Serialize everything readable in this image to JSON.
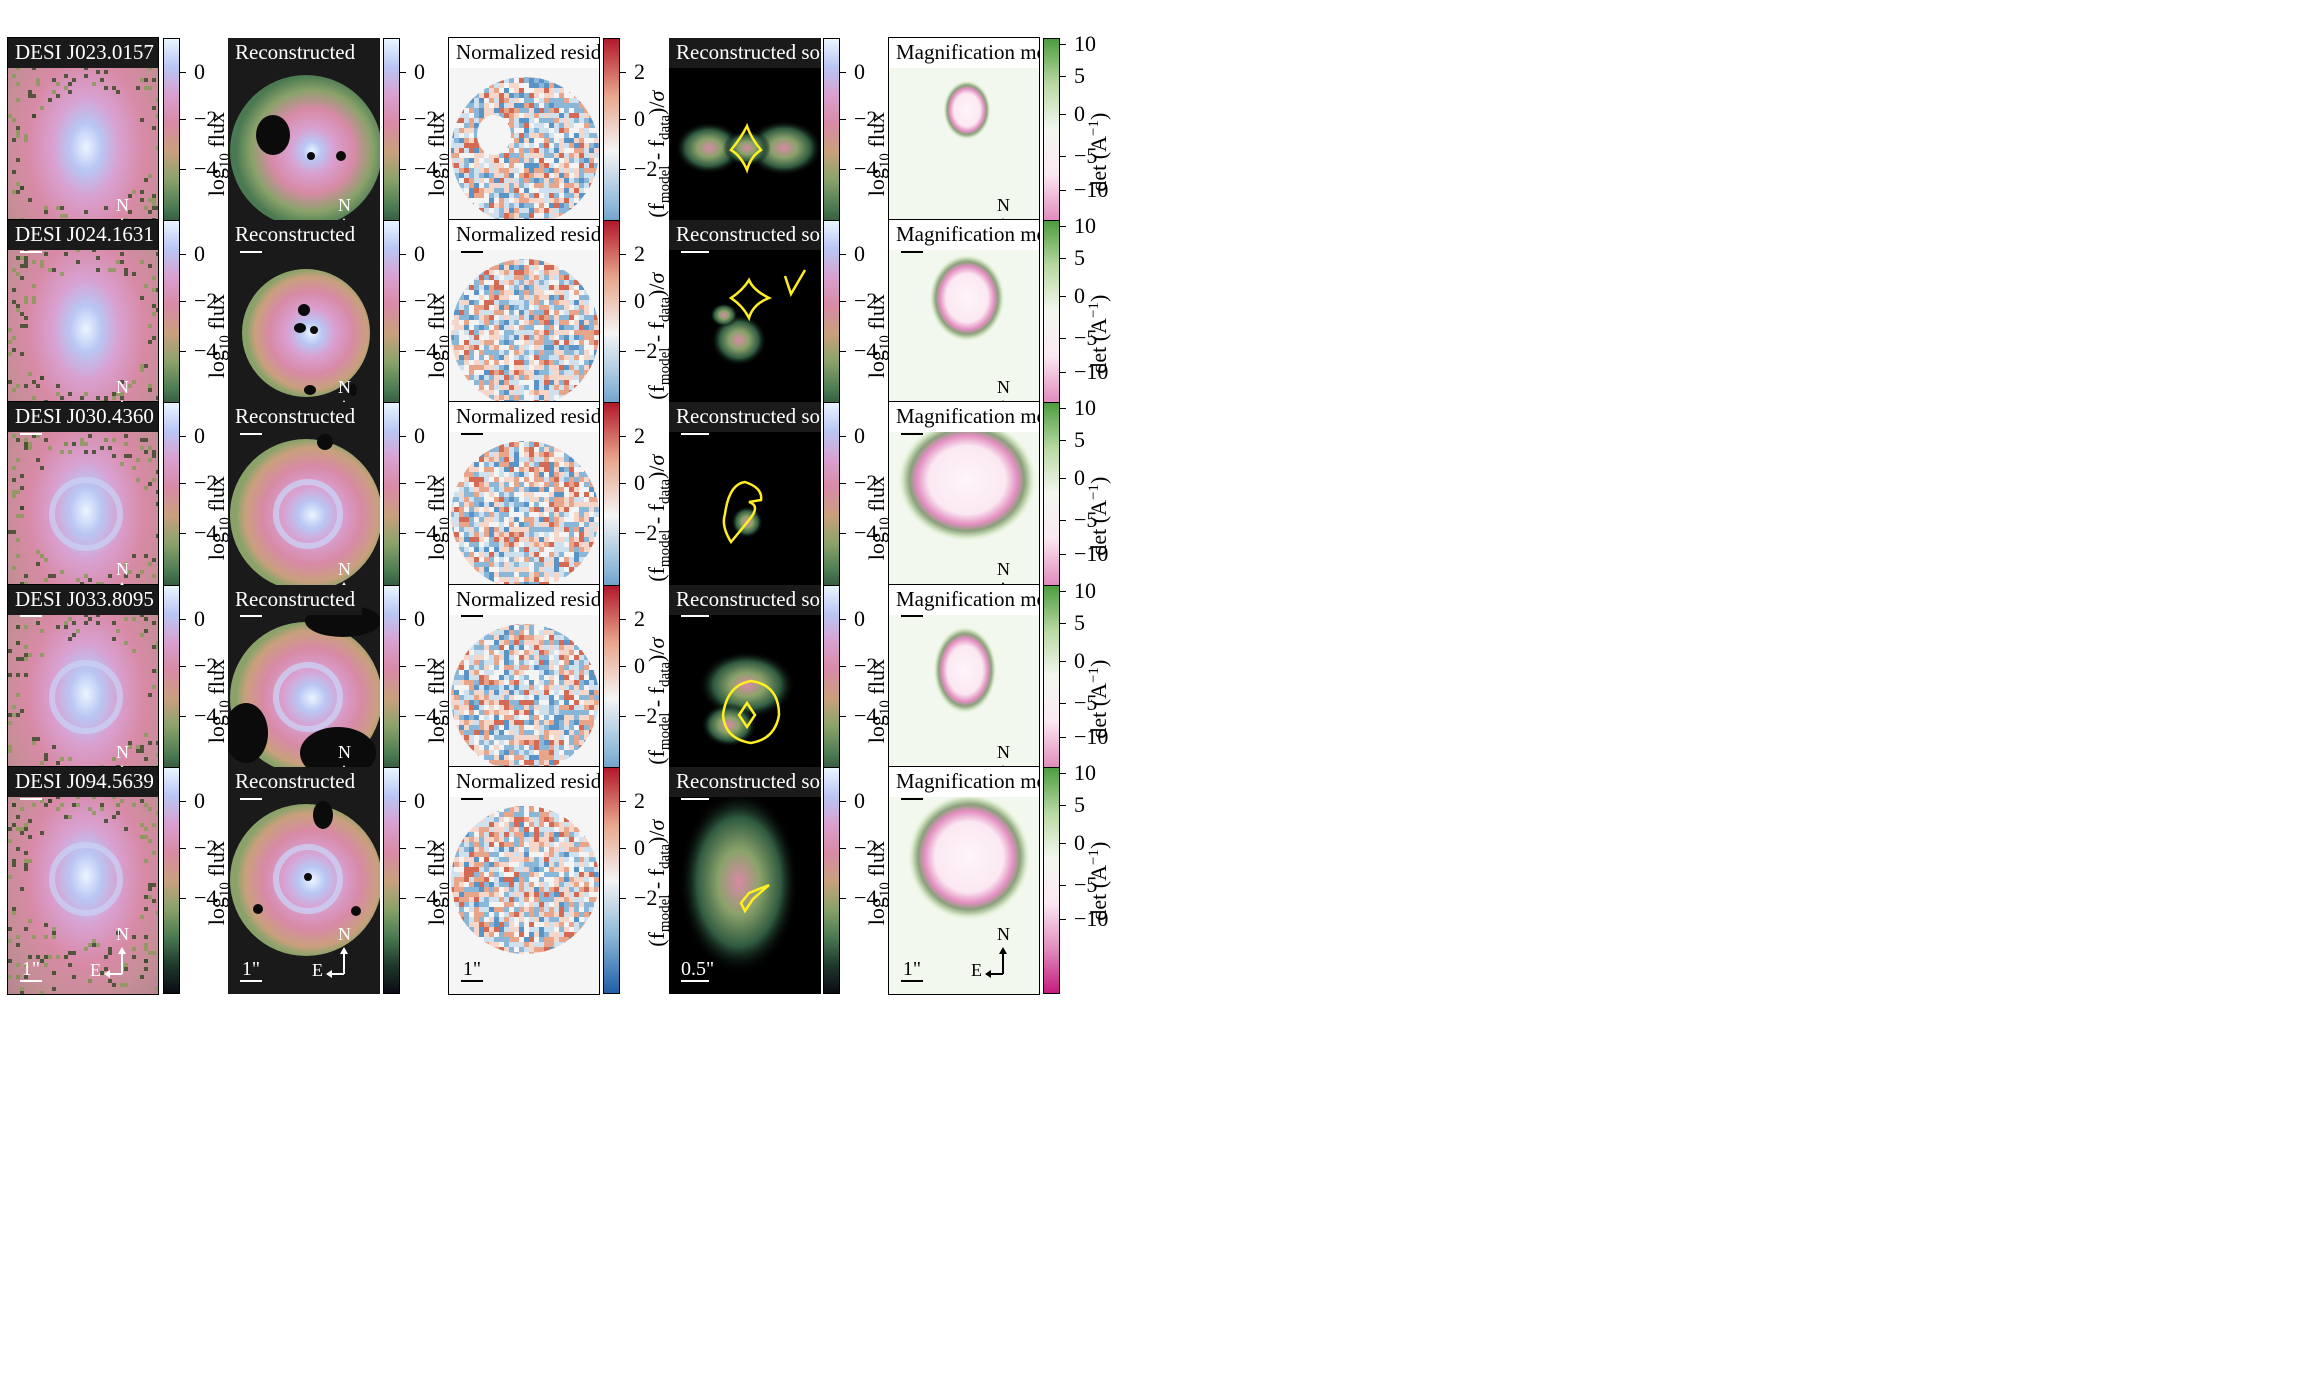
{
  "rows": [
    {
      "name": "DESI J023.0157"
    },
    {
      "name": "DESI J024.1631"
    },
    {
      "name": "DESI J030.4360"
    },
    {
      "name": "DESI J033.8095"
    },
    {
      "name": "DESI J094.5639"
    }
  ],
  "panel_titles": {
    "reconstructed": "Reconstructed",
    "residual": "Normalized residual",
    "source": "Reconstructed source",
    "magnification": "Magnification model"
  },
  "scalebars": {
    "image": "1\"",
    "source": "0.5\""
  },
  "compass": {
    "north": "N",
    "east": "E"
  },
  "colorbars": {
    "flux": {
      "label": "log10 flux",
      "ticks": [
        "0",
        "−2",
        "−4"
      ]
    },
    "residual": {
      "label": "(f_model - f_data)/σ",
      "ticks": [
        "2",
        "0",
        "−2"
      ]
    },
    "magnification": {
      "label": "det (A^−1)",
      "ticks": [
        "10",
        "5",
        "0",
        "−5",
        "−10"
      ]
    }
  },
  "colors": {
    "flux_cmap": [
      "#0b0b14",
      "#1e3a2c",
      "#4b7a52",
      "#8aa26a",
      "#c9a07d",
      "#d88aa6",
      "#d9a0d0",
      "#b9c6f3",
      "#e9f6ff"
    ],
    "residual_cmap": [
      "#1f5fa6",
      "#8ab6d8",
      "#f4f4f4",
      "#e8a58a",
      "#b2182b"
    ],
    "mag_cmap": [
      "#c51b7d",
      "#e28ec0",
      "#fbe8f2",
      "#f3f7ee",
      "#b8d9a2",
      "#4d9c3f"
    ],
    "caustic": "#ffee22"
  }
}
